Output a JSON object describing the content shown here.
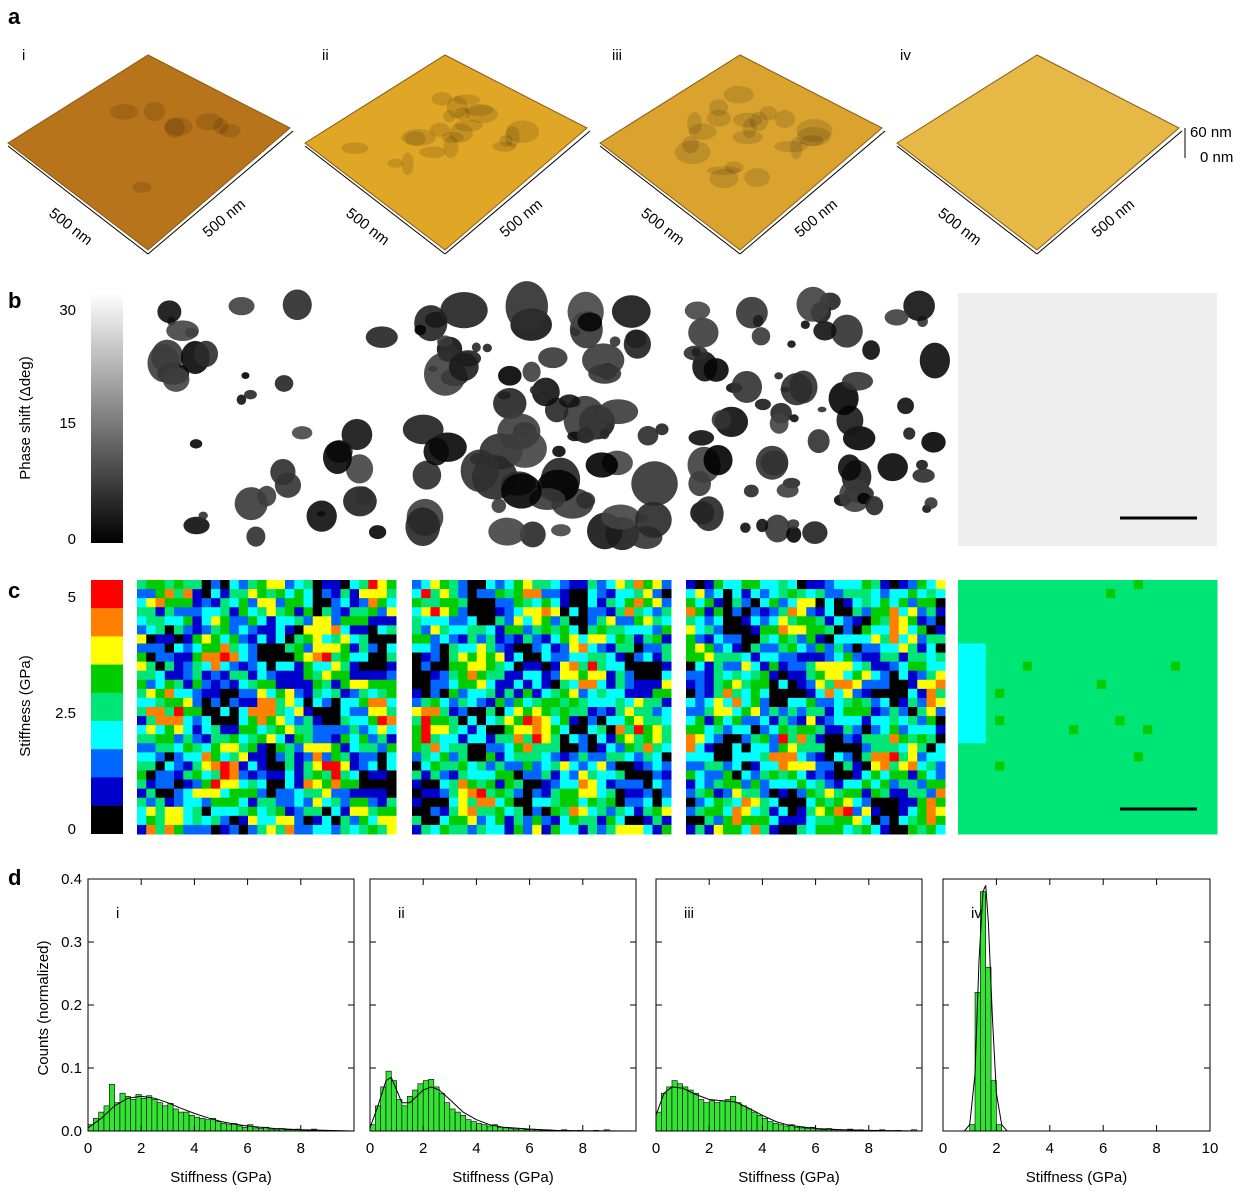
{
  "panels": {
    "a": "a",
    "b": "b",
    "c": "c",
    "d": "d",
    "sub_labels": [
      "i",
      "ii",
      "iii",
      "iv"
    ]
  },
  "panel_a": {
    "scan_size_label": "500 nm",
    "height_scale_top": "60 nm",
    "height_scale_bottom": "0 nm",
    "colors": [
      "#b8741a",
      "#e0a626",
      "#d9a32e",
      "#e6b845"
    ]
  },
  "panel_b": {
    "colorbar_label": "Phase shift (Δdeg)",
    "colorbar_ticks": [
      "30",
      "15",
      "0"
    ],
    "dark_fraction": [
      0.22,
      0.5,
      0.45,
      0.0
    ]
  },
  "panel_c": {
    "colorbar_label": "Stiffness (GPa)",
    "colorbar_ticks": [
      "5",
      "2.5",
      "0"
    ],
    "colorbar_colors": [
      "#ff0000",
      "#ff8000",
      "#ffff00",
      "#00cc00",
      "#00e676",
      "#00ffff",
      "#0066ff",
      "#0000cc",
      "#000000"
    ]
  },
  "chart_data": [
    {
      "type": "bar",
      "panel": "i",
      "xlabel": "Stiffness (GPa)",
      "ylabel": "Counts (normalized)",
      "xlim": [
        0,
        10
      ],
      "ylim": [
        0,
        0.4
      ],
      "xticks": [
        "0",
        "2",
        "4",
        "6",
        "8"
      ],
      "yticks": [
        "0.0",
        "0.1",
        "0.2",
        "0.3",
        "0.4"
      ],
      "bin_width": 0.2,
      "x": [
        0.1,
        0.3,
        0.5,
        0.7,
        0.9,
        1.1,
        1.3,
        1.5,
        1.7,
        1.9,
        2.1,
        2.3,
        2.5,
        2.7,
        2.9,
        3.1,
        3.3,
        3.5,
        3.7,
        3.9,
        4.1,
        4.3,
        4.5,
        4.7,
        4.9,
        5.1,
        5.3,
        5.5,
        5.7,
        5.9,
        6.1,
        6.3,
        6.5,
        6.7,
        6.9,
        7.1,
        7.3,
        7.5,
        7.7,
        7.9,
        8.1,
        8.3,
        8.5,
        8.7,
        8.9
      ],
      "values": [
        0.01,
        0.02,
        0.03,
        0.04,
        0.074,
        0.045,
        0.06,
        0.055,
        0.05,
        0.058,
        0.052,
        0.056,
        0.05,
        0.045,
        0.04,
        0.044,
        0.035,
        0.03,
        0.03,
        0.025,
        0.022,
        0.02,
        0.018,
        0.02,
        0.015,
        0.012,
        0.01,
        0.012,
        0.008,
        0.006,
        0.01,
        0.005,
        0.004,
        0.006,
        0.003,
        0.002,
        0.004,
        0.002,
        0.002,
        0.003,
        0.002,
        0.001,
        0.003,
        0.001,
        0.001
      ],
      "fit": {
        "x": [
          0,
          0.5,
          1,
          1.5,
          2,
          2.5,
          3,
          3.5,
          4,
          4.5,
          5,
          5.5,
          6,
          6.5,
          7,
          7.5,
          8,
          9,
          10
        ],
        "y": [
          0.005,
          0.02,
          0.04,
          0.052,
          0.055,
          0.052,
          0.045,
          0.036,
          0.028,
          0.021,
          0.015,
          0.011,
          0.008,
          0.006,
          0.004,
          0.003,
          0.002,
          0.001,
          0.0
        ]
      }
    },
    {
      "type": "bar",
      "panel": "ii",
      "xlabel": "Stiffness (GPa)",
      "xlim": [
        0,
        10
      ],
      "ylim": [
        0,
        0.4
      ],
      "xticks": [
        "0",
        "2",
        "4",
        "6",
        "8"
      ],
      "bin_width": 0.2,
      "x": [
        0.1,
        0.3,
        0.5,
        0.7,
        0.9,
        1.1,
        1.3,
        1.5,
        1.7,
        1.9,
        2.1,
        2.3,
        2.5,
        2.7,
        2.9,
        3.1,
        3.3,
        3.5,
        3.7,
        3.9,
        4.1,
        4.3,
        4.5,
        4.7,
        4.9,
        5.1,
        5.3,
        5.5,
        5.7,
        5.9,
        6.1,
        6.3,
        6.5,
        6.7,
        6.9,
        7.3,
        7.9,
        8.5,
        8.9
      ],
      "values": [
        0.01,
        0.04,
        0.07,
        0.095,
        0.08,
        0.05,
        0.04,
        0.055,
        0.065,
        0.075,
        0.08,
        0.082,
        0.07,
        0.06,
        0.045,
        0.035,
        0.03,
        0.025,
        0.018,
        0.015,
        0.012,
        0.01,
        0.008,
        0.01,
        0.006,
        0.005,
        0.004,
        0.003,
        0.004,
        0.002,
        0.003,
        0.002,
        0.001,
        0.002,
        0.001,
        0.002,
        0.001,
        0.001,
        0.002
      ],
      "fit": {
        "x": [
          0,
          0.3,
          0.6,
          0.8,
          1,
          1.2,
          1.5,
          2,
          2.3,
          2.6,
          3,
          3.5,
          4,
          4.5,
          5,
          6,
          7,
          8,
          10
        ],
        "y": [
          0.005,
          0.04,
          0.08,
          0.085,
          0.065,
          0.045,
          0.045,
          0.065,
          0.07,
          0.065,
          0.05,
          0.03,
          0.018,
          0.01,
          0.006,
          0.003,
          0.001,
          0.0005,
          0.0
        ]
      }
    },
    {
      "type": "bar",
      "panel": "iii",
      "xlabel": "Stiffness (GPa)",
      "xlim": [
        0,
        10
      ],
      "ylim": [
        0,
        0.4
      ],
      "xticks": [
        "0",
        "2",
        "4",
        "6",
        "8"
      ],
      "bin_width": 0.2,
      "x": [
        0.1,
        0.3,
        0.5,
        0.7,
        0.9,
        1.1,
        1.3,
        1.5,
        1.7,
        1.9,
        2.1,
        2.3,
        2.5,
        2.7,
        2.9,
        3.1,
        3.3,
        3.5,
        3.7,
        3.9,
        4.1,
        4.3,
        4.5,
        4.7,
        4.9,
        5.1,
        5.3,
        5.5,
        5.7,
        5.9,
        6.1,
        6.3,
        6.5,
        6.7,
        6.9,
        7.3,
        7.7,
        8.1,
        8.5,
        9.1,
        9.7
      ],
      "values": [
        0.03,
        0.06,
        0.07,
        0.08,
        0.075,
        0.07,
        0.065,
        0.06,
        0.05,
        0.045,
        0.048,
        0.045,
        0.048,
        0.05,
        0.055,
        0.045,
        0.04,
        0.035,
        0.03,
        0.025,
        0.02,
        0.015,
        0.012,
        0.01,
        0.008,
        0.01,
        0.006,
        0.005,
        0.004,
        0.006,
        0.003,
        0.002,
        0.004,
        0.002,
        0.002,
        0.003,
        0.002,
        0.001,
        0.002,
        0.001,
        0.002
      ],
      "fit": {
        "x": [
          0,
          0.3,
          0.6,
          1,
          1.5,
          2,
          2.5,
          3,
          3.5,
          4,
          4.5,
          5,
          6,
          7,
          8,
          10
        ],
        "y": [
          0.025,
          0.06,
          0.07,
          0.068,
          0.058,
          0.05,
          0.048,
          0.046,
          0.036,
          0.025,
          0.015,
          0.009,
          0.004,
          0.002,
          0.001,
          0.0
        ]
      }
    },
    {
      "type": "bar",
      "panel": "iv",
      "xlabel": "Stiffness (GPa)",
      "xlim": [
        0,
        10
      ],
      "ylim": [
        0,
        0.4
      ],
      "xticks": [
        "0",
        "2",
        "4",
        "6",
        "8",
        "10"
      ],
      "bin_width": 0.2,
      "x": [
        1.1,
        1.3,
        1.5,
        1.7,
        1.9,
        2.1
      ],
      "values": [
        0.01,
        0.22,
        0.38,
        0.26,
        0.08,
        0.01
      ],
      "fit": {
        "x": [
          0.8,
          1.0,
          1.2,
          1.35,
          1.5,
          1.6,
          1.7,
          1.85,
          2.0,
          2.2,
          2.4,
          2.6
        ],
        "y": [
          0.0,
          0.01,
          0.09,
          0.27,
          0.38,
          0.39,
          0.33,
          0.18,
          0.06,
          0.01,
          0.0,
          0.0
        ]
      }
    }
  ]
}
